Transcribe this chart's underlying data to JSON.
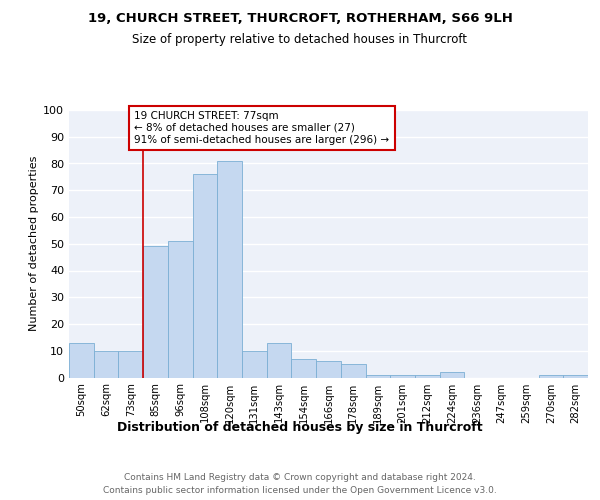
{
  "title_line1": "19, CHURCH STREET, THURCROFT, ROTHERHAM, S66 9LH",
  "title_line2": "Size of property relative to detached houses in Thurcroft",
  "xlabel": "Distribution of detached houses by size in Thurcroft",
  "ylabel": "Number of detached properties",
  "footnote_line1": "Contains HM Land Registry data © Crown copyright and database right 2024.",
  "footnote_line2": "Contains public sector information licensed under the Open Government Licence v3.0.",
  "bar_labels": [
    "50sqm",
    "62sqm",
    "73sqm",
    "85sqm",
    "96sqm",
    "108sqm",
    "120sqm",
    "131sqm",
    "143sqm",
    "154sqm",
    "166sqm",
    "178sqm",
    "189sqm",
    "201sqm",
    "212sqm",
    "224sqm",
    "236sqm",
    "247sqm",
    "259sqm",
    "270sqm",
    "282sqm"
  ],
  "bar_values": [
    13,
    10,
    10,
    49,
    51,
    76,
    81,
    10,
    13,
    7,
    6,
    5,
    1,
    1,
    1,
    2,
    0,
    0,
    0,
    1,
    1
  ],
  "bar_color": "#c5d8f0",
  "bar_edge_color": "#7bafd4",
  "background_color": "#edf1f9",
  "grid_color": "#ffffff",
  "annotation_line1": "19 CHURCH STREET: 77sqm",
  "annotation_line2": "← 8% of detached houses are smaller (27)",
  "annotation_line3": "91% of semi-detached houses are larger (296) →",
  "annotation_box_color": "#ffffff",
  "annotation_box_edge_color": "#cc0000",
  "red_line_x": 2.5,
  "ylim": [
    0,
    100
  ],
  "yticks": [
    0,
    10,
    20,
    30,
    40,
    50,
    60,
    70,
    80,
    90,
    100
  ]
}
